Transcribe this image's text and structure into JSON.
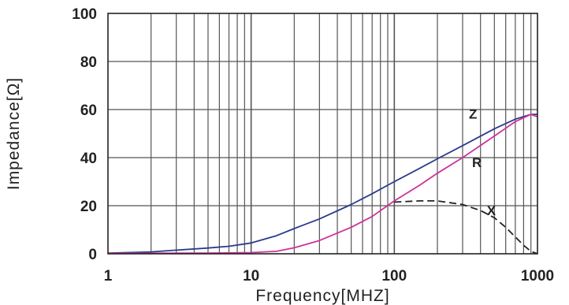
{
  "chart_data": {
    "type": "line",
    "xlabel": "Frequency[MHZ]",
    "ylabel": "Impedance[Ω]",
    "x_scale": "log",
    "xlim": [
      1,
      1000
    ],
    "ylim": [
      0,
      100
    ],
    "xticks": [
      "1",
      "10",
      "100",
      "1000"
    ],
    "yticks": [
      "0",
      "20",
      "40",
      "60",
      "80",
      "100"
    ],
    "grid": {
      "vertical": "log-minor",
      "horizontal": "major"
    },
    "series": [
      {
        "name": "Z",
        "color": "#2b3a8c",
        "style": "solid",
        "points": [
          [
            1,
            0.3
          ],
          [
            2,
            0.8
          ],
          [
            3,
            1.5
          ],
          [
            5,
            2.4
          ],
          [
            7,
            3.1
          ],
          [
            10,
            4.5
          ],
          [
            15,
            7.5
          ],
          [
            20,
            10.5
          ],
          [
            30,
            14.5
          ],
          [
            50,
            20.5
          ],
          [
            70,
            25
          ],
          [
            100,
            30
          ],
          [
            150,
            35.5
          ],
          [
            200,
            39.5
          ],
          [
            300,
            45
          ],
          [
            500,
            52
          ],
          [
            700,
            56
          ],
          [
            900,
            58
          ],
          [
            1000,
            58
          ]
        ]
      },
      {
        "name": "R",
        "color": "#cc3399",
        "style": "solid",
        "points": [
          [
            1,
            0.2
          ],
          [
            5,
            0.3
          ],
          [
            10,
            0.5
          ],
          [
            15,
            1
          ],
          [
            20,
            2.5
          ],
          [
            30,
            5.5
          ],
          [
            50,
            11
          ],
          [
            70,
            15.5
          ],
          [
            100,
            22
          ],
          [
            150,
            28.5
          ],
          [
            200,
            33.5
          ],
          [
            300,
            40
          ],
          [
            500,
            49
          ],
          [
            700,
            55
          ],
          [
            900,
            58
          ],
          [
            1000,
            57
          ]
        ]
      },
      {
        "name": "X",
        "color": "#222222",
        "style": "dashed",
        "points": [
          [
            100,
            21.5
          ],
          [
            150,
            22
          ],
          [
            200,
            22
          ],
          [
            300,
            20.5
          ],
          [
            400,
            18
          ],
          [
            500,
            15
          ],
          [
            600,
            11
          ],
          [
            700,
            7
          ],
          [
            800,
            3.5
          ],
          [
            900,
            1
          ],
          [
            1000,
            0
          ]
        ]
      }
    ]
  }
}
